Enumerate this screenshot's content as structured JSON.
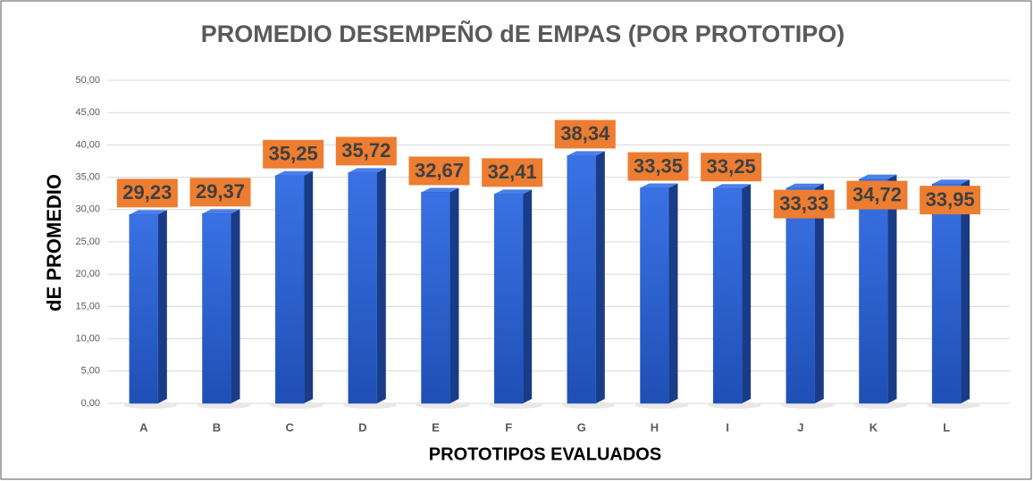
{
  "chart_data": {
    "type": "bar",
    "title": "PROMEDIO DESEMPEÑO dE EMPAS (POR PROTOTIPO)",
    "x_label": "PROTOTIPOS EVALUADOS",
    "y_label": "dE PROMEDIO",
    "categories": [
      "A",
      "B",
      "C",
      "D",
      "E",
      "F",
      "G",
      "H",
      "I",
      "J",
      "K",
      "L"
    ],
    "values": [
      29.23,
      29.37,
      35.25,
      35.72,
      32.67,
      32.41,
      38.34,
      33.35,
      33.25,
      33.33,
      34.72,
      33.95
    ],
    "value_labels": [
      "29,23",
      "29,37",
      "35,25",
      "35,72",
      "32,67",
      "32,41",
      "38,34",
      "33,35",
      "33,25",
      "33,33",
      "34,72",
      "33,95"
    ],
    "color": "#2f62d0",
    "label_color": "#ed7d31",
    "ylim": [
      0,
      50
    ],
    "yticks": [
      {
        "value": 0,
        "label": "0,00"
      },
      {
        "value": 5,
        "label": "5,00"
      },
      {
        "value": 10,
        "label": "10,00"
      },
      {
        "value": 15,
        "label": "15,00"
      },
      {
        "value": 20,
        "label": "20,00"
      },
      {
        "value": 25,
        "label": "25,00"
      },
      {
        "value": 30,
        "label": "30,00"
      },
      {
        "value": 35,
        "label": "35,00"
      },
      {
        "value": 40,
        "label": "40,00"
      },
      {
        "value": 45,
        "label": "45,00"
      },
      {
        "value": 50,
        "label": "50,00"
      }
    ],
    "grid": true
  }
}
